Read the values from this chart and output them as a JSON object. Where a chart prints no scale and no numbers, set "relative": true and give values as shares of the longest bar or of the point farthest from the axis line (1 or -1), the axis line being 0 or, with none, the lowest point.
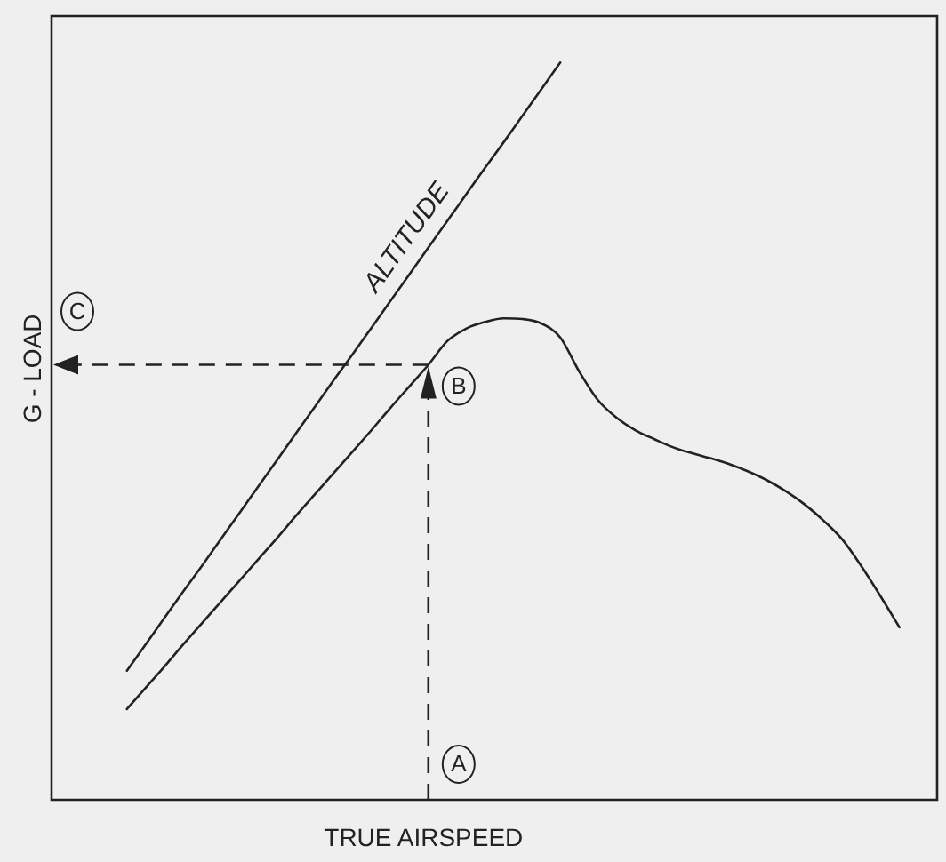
{
  "chart_data": {
    "type": "line",
    "relative": true,
    "xlabel": "TRUE AIRSPEED",
    "ylabel": "G - LOAD",
    "marker": "none",
    "categories": [
      null,
      null,
      null,
      null,
      null,
      null,
      null,
      null,
      null,
      null,
      null,
      null,
      null,
      null,
      null,
      null,
      null,
      null,
      null,
      null,
      null,
      null,
      null,
      null,
      null,
      null,
      null,
      null,
      null,
      null,
      null,
      null,
      null,
      null,
      null,
      null,
      null,
      null,
      null,
      null,
      null,
      null,
      null,
      null,
      null,
      null,
      null,
      null
    ],
    "series": [
      {
        "color": "#222222",
        "values": [
          null,
          null,
          null,
          null,
          0.123,
          0.152,
          0.181,
          0.211,
          0.24,
          0.269,
          0.298,
          0.327,
          0.356,
          0.386,
          0.415,
          0.444,
          0.473,
          0.502,
          0.532,
          0.561,
          0.59,
          0.622,
          0.639,
          0.648,
          0.653,
          0.652,
          0.646,
          0.627,
          0.581,
          0.542,
          0.518,
          0.501,
          0.489,
          0.478,
          0.47,
          0.463,
          0.455,
          0.445,
          0.433,
          0.418,
          0.4,
          0.378,
          0.352,
          0.316,
          0.276,
          0.234,
          null,
          null
        ]
      },
      {
        "name": "ALTITUDE",
        "color": "#222222",
        "values": [
          null,
          null,
          null,
          null,
          0.175,
          0.211,
          0.247,
          0.283,
          0.318,
          0.354,
          0.39,
          0.426,
          0.462,
          0.498,
          0.534,
          0.57,
          0.605,
          0.641,
          0.677,
          0.713,
          0.749,
          0.785,
          0.821,
          0.857,
          0.892,
          0.928,
          0.964,
          1.0,
          null,
          null,
          null,
          null,
          null,
          null,
          null,
          null,
          null,
          null,
          null,
          null,
          null,
          null,
          null,
          null,
          null,
          null,
          null,
          null
        ]
      }
    ],
    "ref_lines": [
      {
        "axis": "y",
        "value": 0.59,
        "label": "C",
        "line_style": "dashed",
        "color": "#222222"
      }
    ],
    "annotations": [
      "B",
      "A"
    ]
  }
}
